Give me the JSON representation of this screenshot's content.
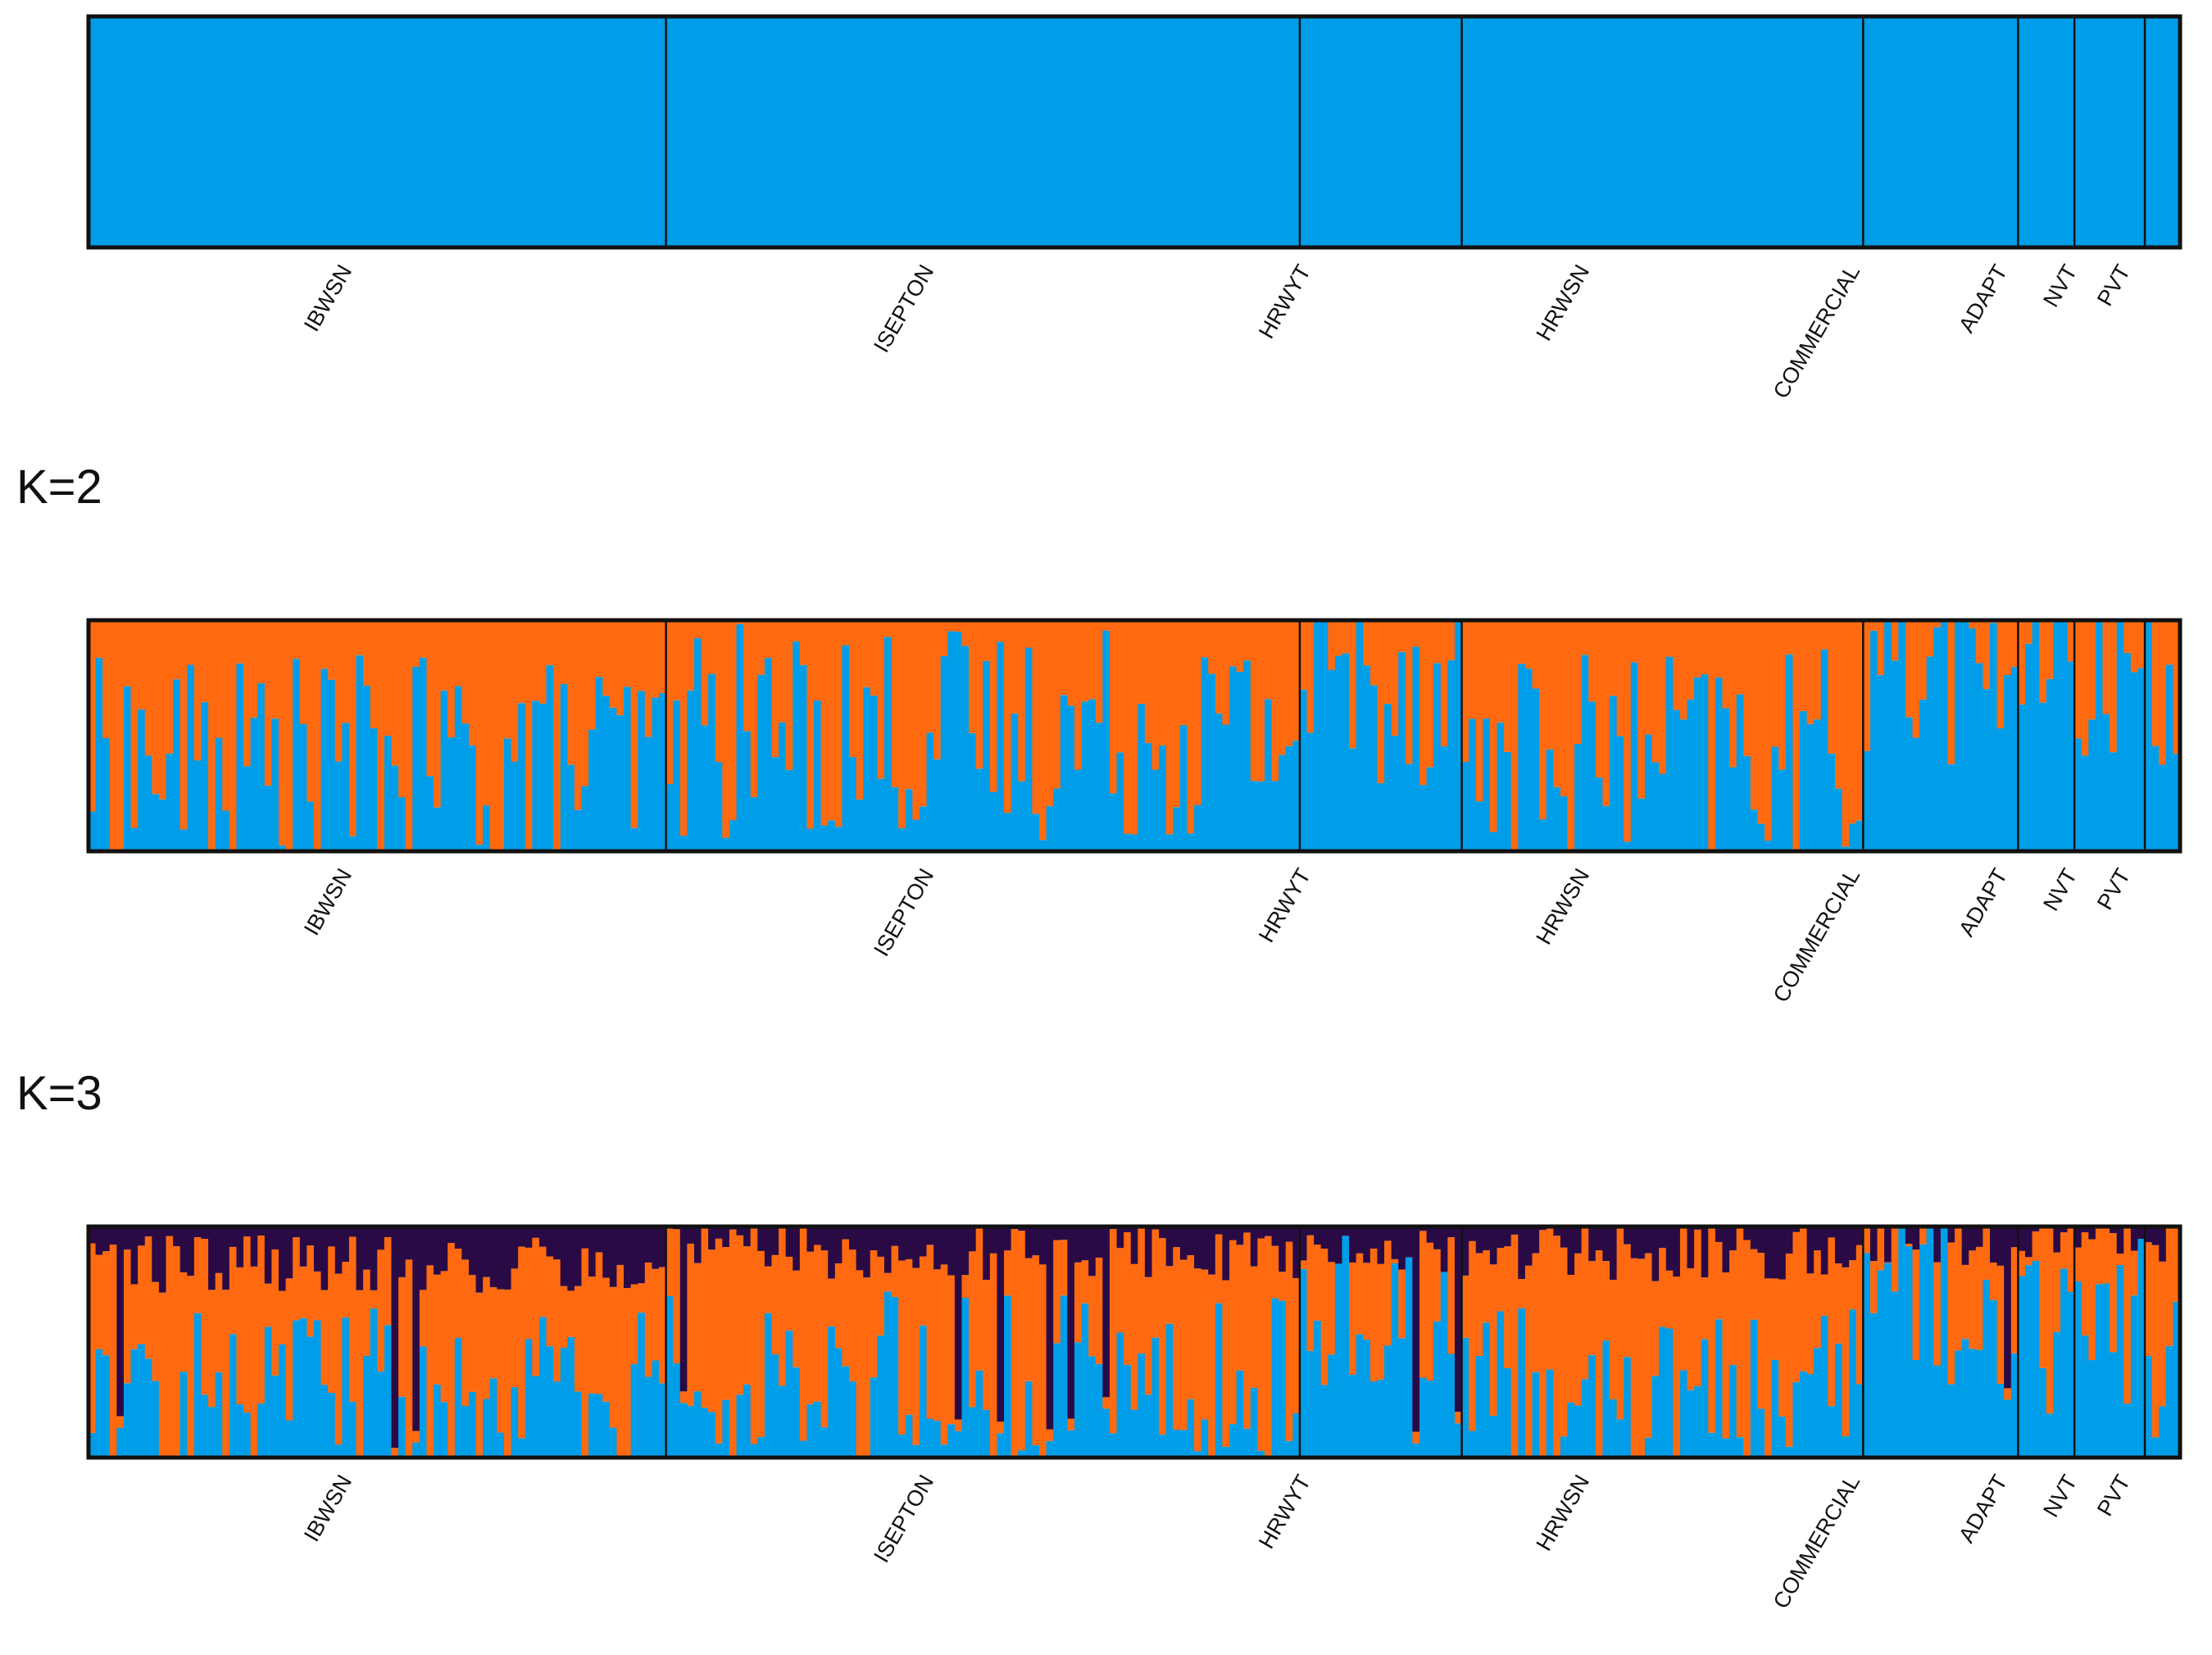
{
  "colors": {
    "cluster_blue": "#009ee9",
    "cluster_orange": "#ff6a10",
    "cluster_dark": "#2a0a45",
    "frame": "#111111"
  },
  "chart_data": [
    {
      "type": "bar",
      "stacked": true,
      "panel_label": "",
      "k": 1,
      "groups": [
        "IBWSN",
        "ISEPTON",
        "HRWYT",
        "HRWSN",
        "COMMERCIAL",
        "ADAPT",
        "NVT",
        "PVT"
      ],
      "group_widths_individuals": [
        82,
        90,
        23,
        57,
        22,
        8,
        10,
        5
      ],
      "series": [
        {
          "color": "cluster_blue",
          "values": "all individuals 1.0"
        }
      ],
      "ylim": [
        0,
        1
      ]
    },
    {
      "type": "bar",
      "stacked": true,
      "panel_label": "K=2",
      "k": 2,
      "groups": [
        "IBWSN",
        "ISEPTON",
        "HRWYT",
        "HRWSN",
        "COMMERCIAL",
        "ADAPT",
        "NVT",
        "PVT"
      ],
      "group_widths_individuals": [
        82,
        90,
        23,
        57,
        22,
        8,
        10,
        5
      ],
      "series_order_bottom_to_top": [
        "cluster_blue",
        "cluster_orange"
      ],
      "blue_fraction_by_group_mean": [
        0.38,
        0.52,
        0.75,
        0.4,
        0.85,
        0.8,
        0.8,
        0.75
      ],
      "ylim": [
        0,
        1
      ]
    },
    {
      "type": "bar",
      "stacked": true,
      "panel_label": "K=3",
      "k": 3,
      "groups": [
        "IBWSN",
        "ISEPTON",
        "HRWYT",
        "HRWSN",
        "COMMERCIAL",
        "ADAPT",
        "NVT",
        "PVT"
      ],
      "group_widths_individuals": [
        82,
        90,
        23,
        57,
        22,
        8,
        10,
        5
      ],
      "series_order_bottom_to_top": [
        "cluster_blue",
        "cluster_orange",
        "cluster_dark"
      ],
      "blue_fraction_by_group_mean": [
        0.25,
        0.35,
        0.6,
        0.25,
        0.7,
        0.5,
        0.55,
        0.45
      ],
      "dark_fraction_by_group_mean": [
        0.15,
        0.1,
        0.12,
        0.1,
        0.05,
        0.03,
        0.05,
        0.05
      ],
      "ylim": [
        0,
        1
      ]
    }
  ],
  "panels": [
    {
      "label": ""
    },
    {
      "label": "K=2"
    },
    {
      "label": "K=3"
    }
  ]
}
